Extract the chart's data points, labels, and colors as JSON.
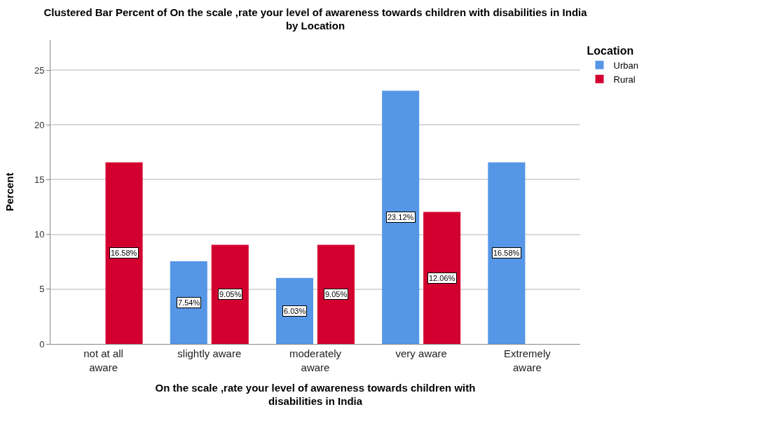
{
  "chart_data": {
    "type": "bar",
    "title": "Clustered Bar Percent of On the scale ,rate your level of awareness towards children with disabilities in India by Location",
    "xlabel": "On the scale ,rate your level of awareness towards children with disabilities in India",
    "ylabel": "Percent",
    "legend_title": "Location",
    "categories": [
      "not at all aware",
      "slightly aware",
      "moderately aware",
      "very aware",
      "Extremely aware"
    ],
    "series": [
      {
        "name": "Urban",
        "color": "#5596e6",
        "values": [
          0,
          7.54,
          6.03,
          23.12,
          16.58
        ],
        "value_labels": [
          null,
          "7.54%",
          "6.03%",
          "23.12%",
          "16.58%"
        ]
      },
      {
        "name": "Rural",
        "color": "#d3002f",
        "values": [
          16.58,
          9.05,
          9.05,
          12.06,
          0
        ],
        "value_labels": [
          "16.58%",
          "9.05%",
          "9.05%",
          "12.06%",
          null
        ]
      }
    ],
    "ylim": [
      0,
      27.75
    ],
    "yticks": [
      0,
      5,
      10,
      15,
      20,
      25
    ],
    "grid": "y",
    "legend": "top right"
  }
}
